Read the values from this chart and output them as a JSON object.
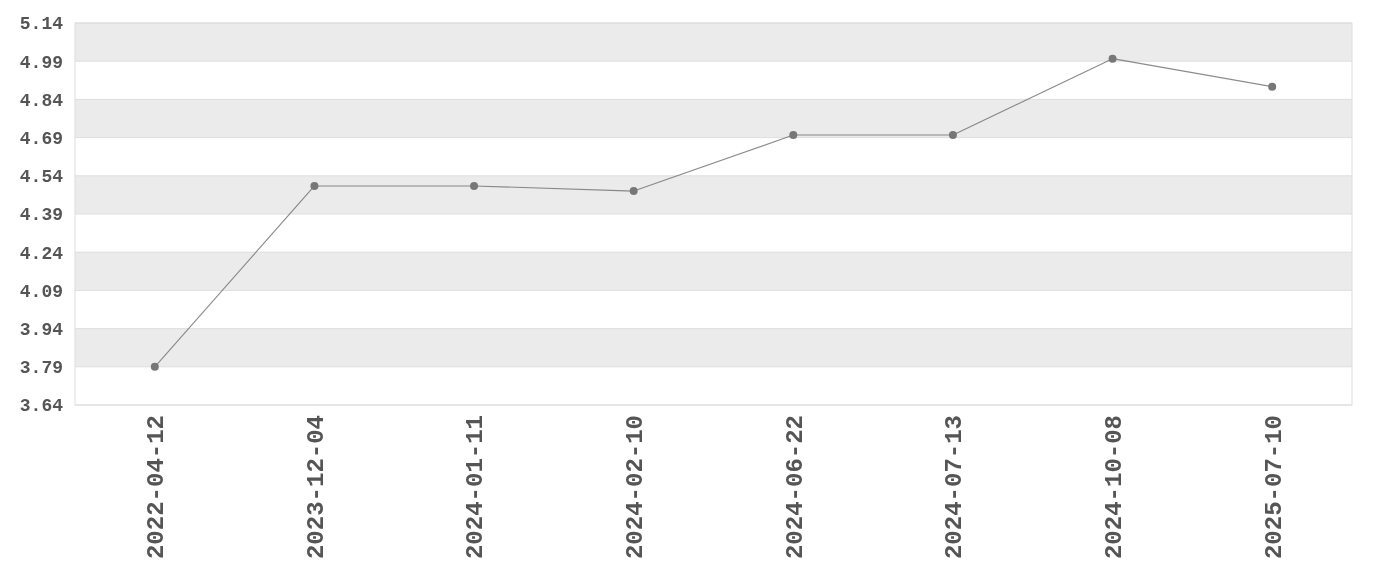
{
  "chart_data": {
    "type": "line",
    "categories": [
      "2022-04-12",
      "2023-12-04",
      "2024-01-11",
      "2024-02-10",
      "2024-06-22",
      "2024-07-13",
      "2024-10-08",
      "2025-07-10"
    ],
    "series": [
      {
        "color": "#777777",
        "values": [
          3.79,
          4.5,
          4.5,
          4.48,
          4.7,
          4.7,
          5.0,
          4.89
        ]
      }
    ],
    "ylim": [
      3.64,
      5.14
    ],
    "yticks": [
      3.64,
      3.79,
      3.94,
      4.09,
      4.24,
      4.39,
      4.54,
      4.69,
      4.84,
      4.99,
      5.14
    ],
    "grid": "y",
    "marker": "circle",
    "line_style": "solid"
  }
}
